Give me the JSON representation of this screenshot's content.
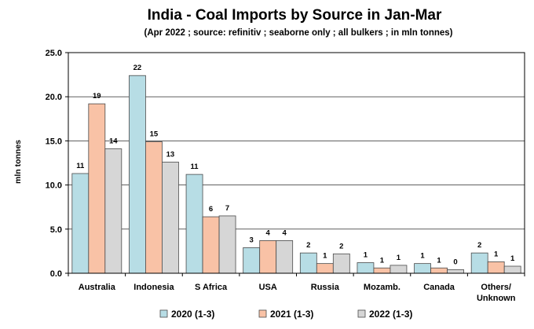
{
  "chart_data": {
    "type": "bar",
    "title": "India - Coal Imports by Source in Jan-Mar",
    "subtitle": "(Apr 2022 ; source: refinitiv ; seaborne only ; all bulkers ; in mln tonnes)",
    "ylabel": "mln tonnes",
    "ylim": [
      0,
      25
    ],
    "yticks": [
      "0.0",
      "5.0",
      "10.0",
      "15.0",
      "20.0",
      "25.0"
    ],
    "grid": true,
    "legend_position": "bottom",
    "categories": [
      [
        "Australia"
      ],
      [
        "Indonesia"
      ],
      [
        "S Africa"
      ],
      [
        "USA"
      ],
      [
        "Russia"
      ],
      [
        "Mozamb."
      ],
      [
        "Canada"
      ],
      [
        "Others/",
        "Unknown"
      ]
    ],
    "series": [
      {
        "name": "2020 (1-3)",
        "color": "#b7dde5",
        "values": [
          11.3,
          22.4,
          11.2,
          2.9,
          2.3,
          1.2,
          1.1,
          2.3
        ],
        "labels": [
          "11",
          "22",
          "11",
          "3",
          "2",
          "1",
          "1",
          "2"
        ]
      },
      {
        "name": "2021 (1-3)",
        "color": "#f9c2a6",
        "values": [
          19.2,
          14.9,
          6.4,
          3.7,
          1.1,
          0.6,
          0.6,
          1.3
        ],
        "labels": [
          "19",
          "15",
          "6",
          "4",
          "1",
          "1",
          "1",
          "1"
        ]
      },
      {
        "name": "2022 (1-3)",
        "color": "#d6d6d6",
        "values": [
          14.1,
          12.6,
          6.5,
          3.7,
          2.2,
          0.9,
          0.4,
          0.8
        ],
        "labels": [
          "14",
          "13",
          "7",
          "4",
          "2",
          "1",
          "0",
          "1"
        ]
      }
    ]
  }
}
